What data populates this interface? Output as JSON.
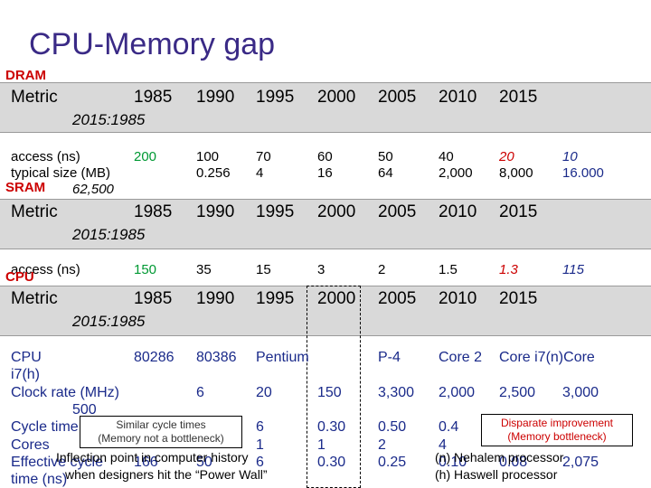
{
  "title": "CPU-Memory gap",
  "dram": {
    "label": "DRAM",
    "header": {
      "metric": "Metric",
      "years": [
        "1985",
        "1990",
        "1995",
        "2000",
        "2005",
        "2010",
        "2015"
      ],
      "ratio": "2015:1985"
    },
    "access_label": "access (ns)",
    "access_values": [
      "200",
      "100",
      "70",
      "60",
      "50",
      "40",
      "20",
      "10"
    ],
    "size_label": "typical size (MB)",
    "size_values": [
      "0.256",
      "4",
      "16",
      "64",
      "2,000",
      "8,000",
      "16.000"
    ],
    "size_first": "62,500"
  },
  "sram": {
    "label": "SRAM",
    "header": {
      "metric": "Metric",
      "years": [
        "1985",
        "1990",
        "1995",
        "2000",
        "2005",
        "2010",
        "2015"
      ],
      "ratio": "2015:1985"
    },
    "access_label": "access (ns)",
    "access_values": [
      "150",
      "35",
      "15",
      "3",
      "2",
      "1.5",
      "1.3",
      "115"
    ]
  },
  "cpu": {
    "label": "CPU",
    "header": {
      "metric": "Metric",
      "years": [
        "1985",
        "1990",
        "1995",
        "2000",
        "2005",
        "2010",
        "2015"
      ],
      "ratio": "2015:1985"
    },
    "cpu_label": "CPU",
    "i7h_label": "i7(h)",
    "cpu_values": [
      "80286",
      "80386",
      "Pentium",
      "P-4",
      "Core 2",
      "Core i7(n)Core"
    ],
    "clock_label": "Clock rate (MHz)",
    "clock_values": [
      "6",
      "20",
      "150",
      "3,300",
      "2,000",
      "2,500",
      "3,000"
    ],
    "clock_ratio": "500",
    "cycle_label": "Cycle time",
    "cycle_values": [
      "6",
      "0.30",
      "0.50",
      "0.4"
    ],
    "cores_label": "Cores",
    "cores_values": [
      "1",
      "1",
      "2",
      "4"
    ],
    "eff_label": "Effective cycle",
    "eff_label2": "time (ns)",
    "eff_values": [
      "166",
      "50",
      "6",
      "0.30",
      "0.25",
      "0.10",
      "0.08",
      "2,075"
    ]
  },
  "notes": {
    "similar": [
      "Similar cycle times",
      "(Memory not a bottleneck)"
    ],
    "disparate": [
      "Disparate improvement",
      "(Memory bottleneck)"
    ],
    "inflection": [
      "Inflection point in computer history",
      "when designers hit the “Power Wall”"
    ],
    "nehalem": "(n) Nehalem processor",
    "haswell": "(h) Haswell processor"
  }
}
